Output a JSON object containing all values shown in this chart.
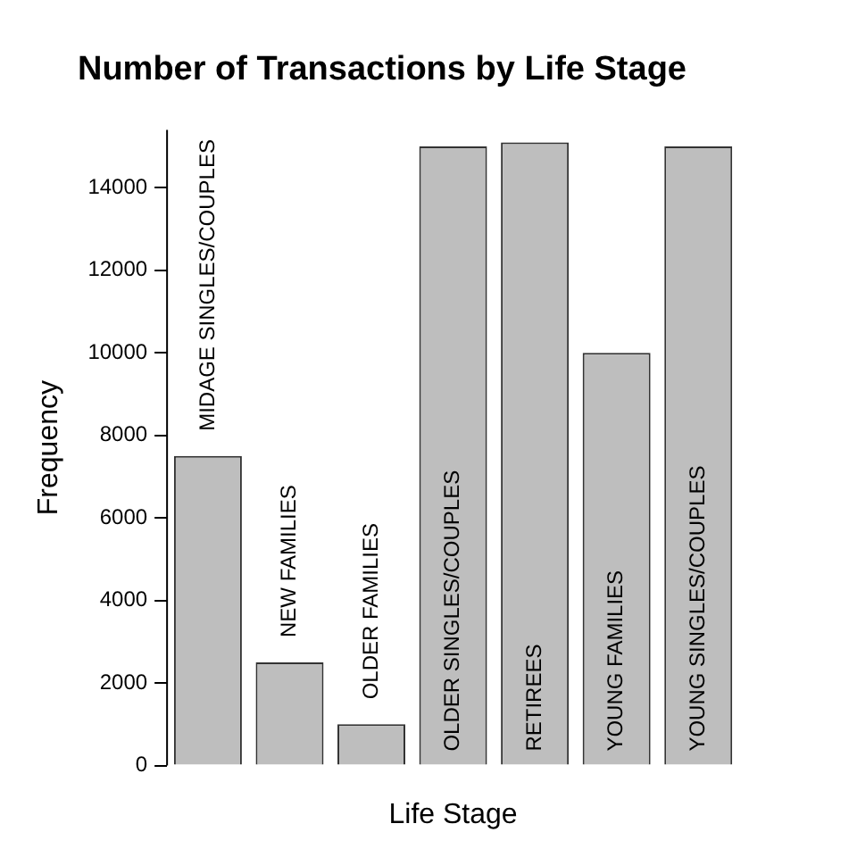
{
  "chart_data": {
    "type": "bar",
    "title": "Number of Transactions by Life Stage",
    "xlabel": "Life Stage",
    "ylabel": "Frequency",
    "categories": [
      "MIDAGE SINGLES/COUPLES",
      "NEW FAMILIES",
      "OLDER FAMILIES",
      "OLDER SINGLES/COUPLES",
      "RETIREES",
      "YOUNG FAMILIES",
      "YOUNG SINGLES/COUPLES"
    ],
    "values": [
      7500,
      2500,
      1000,
      15000,
      15100,
      10000,
      15000
    ],
    "color": "#bebebe",
    "ylim": [
      0,
      15400
    ],
    "yticks": [
      0,
      2000,
      4000,
      6000,
      8000,
      10000,
      12000,
      14000
    ],
    "grid": false,
    "legend": false
  }
}
